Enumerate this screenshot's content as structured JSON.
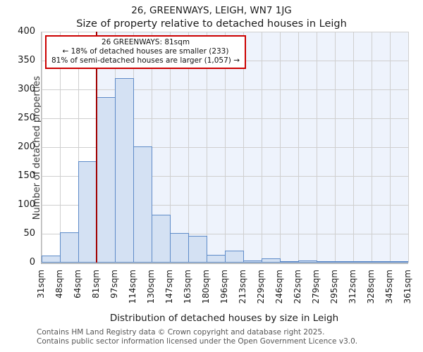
{
  "page": {
    "title": "26, GREENWAYS, LEIGH, WN7 1JG",
    "subtitle": "Size of property relative to detached houses in Leigh"
  },
  "annotation": {
    "line1": "26 GREENWAYS: 81sqm",
    "line2": "← 18% of detached houses are smaller (233)",
    "line3": "81% of semi-detached houses are larger (1,057) →"
  },
  "footer": {
    "line1": "Contains HM Land Registry data © Crown copyright and database right 2025.",
    "line2": "Contains public sector information licensed under the Open Government Licence v3.0."
  },
  "chart_data": {
    "type": "bar",
    "title": "26, GREENWAYS, LEIGH, WN7 1JG — Size of property relative to detached houses in Leigh",
    "xlabel": "Distribution of detached houses by size in Leigh",
    "ylabel": "Number of detached properties",
    "ylim": [
      0,
      400
    ],
    "yticks": [
      0,
      50,
      100,
      150,
      200,
      250,
      300,
      350,
      400
    ],
    "grid": true,
    "bin_edges_sqm": [
      31,
      48,
      64,
      81,
      97,
      114,
      130,
      147,
      163,
      180,
      196,
      213,
      229,
      246,
      262,
      279,
      295,
      312,
      328,
      345,
      361
    ],
    "x_tick_labels": [
      "31sqm",
      "48sqm",
      "64sqm",
      "81sqm",
      "97sqm",
      "114sqm",
      "130sqm",
      "147sqm",
      "163sqm",
      "180sqm",
      "196sqm",
      "213sqm",
      "229sqm",
      "246sqm",
      "262sqm",
      "279sqm",
      "295sqm",
      "312sqm",
      "328sqm",
      "345sqm",
      "361sqm"
    ],
    "values": [
      12,
      52,
      176,
      287,
      320,
      201,
      83,
      51,
      46,
      13,
      21,
      4,
      7,
      2,
      4,
      2,
      1,
      1,
      1,
      1
    ],
    "marker": {
      "value_sqm": 81,
      "edge_index": 3,
      "label": "26 GREENWAYS: 81sqm"
    }
  },
  "colors": {
    "bar_fill": "#d4e1f3",
    "bar_border": "#5e8bc8",
    "marker_line": "#a00000",
    "annotation_border": "#cc0000",
    "shade": "#eef3fc",
    "gridline": "#cfcfcf"
  }
}
